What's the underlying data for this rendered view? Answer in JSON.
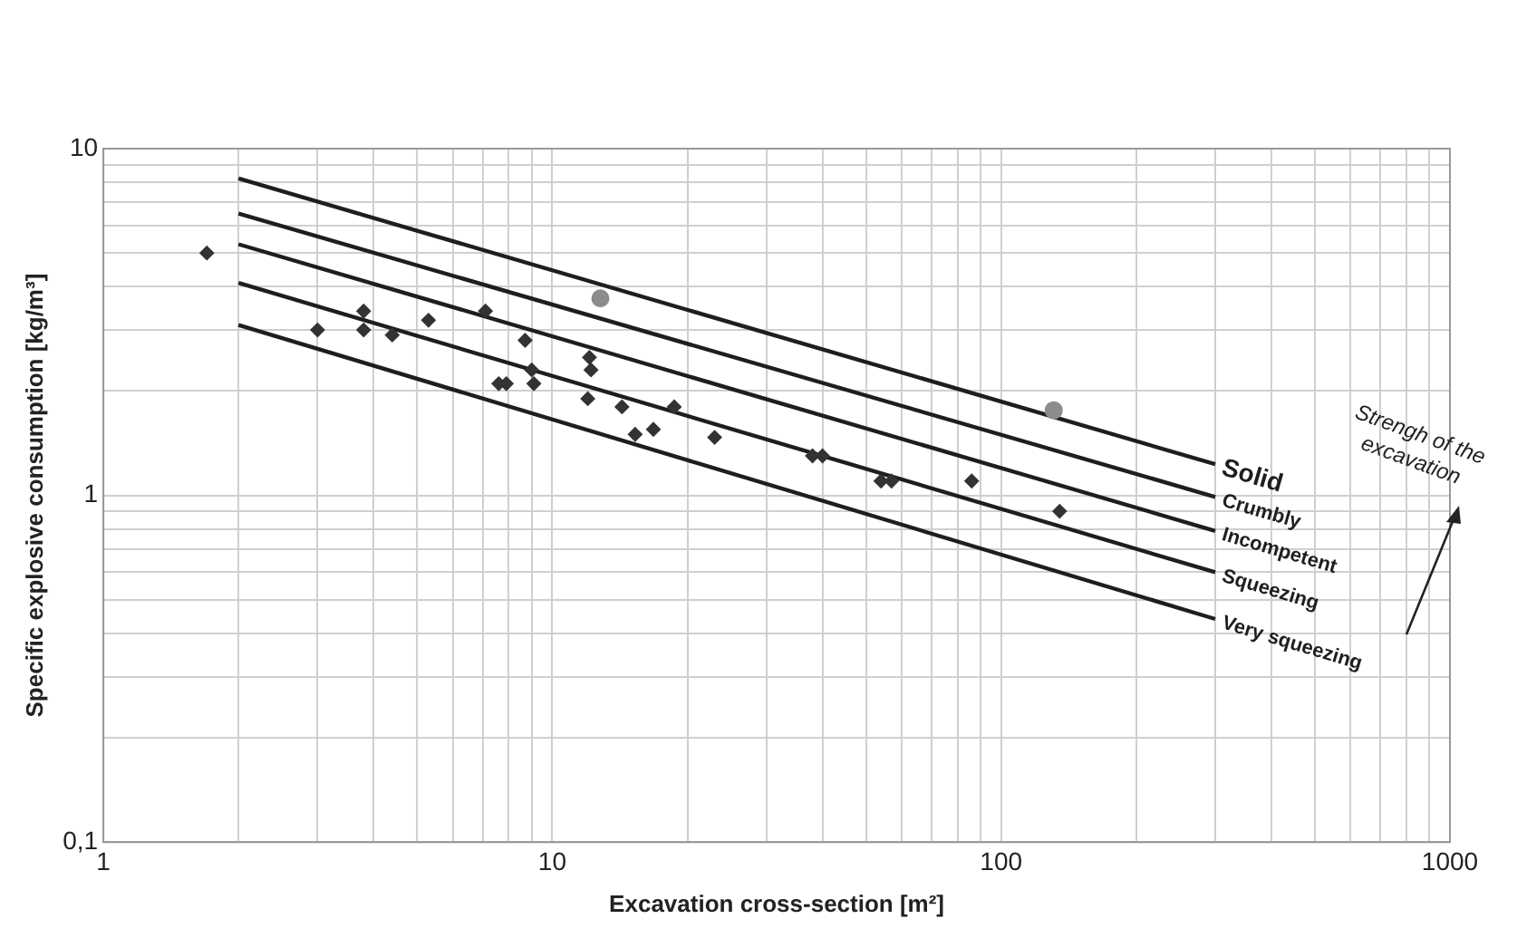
{
  "chart_data": {
    "type": "scatter",
    "xlabel": "Excavation cross-section [m²]",
    "ylabel": "Specific explosive consumption [kg/m³]",
    "log": "xy",
    "grid": true,
    "legend": false,
    "xlim": [
      1,
      1000
    ],
    "ylim": [
      0.1,
      10
    ],
    "xticks": [
      1,
      {
        "value": 2,
        "label": null
      },
      {
        "value": 3,
        "label": null
      },
      {
        "value": 4,
        "label": null
      },
      {
        "value": 5,
        "label": null
      },
      {
        "value": 6,
        "label": null
      },
      {
        "value": 7,
        "label": null
      },
      {
        "value": 8,
        "label": null
      },
      {
        "value": 9,
        "label": null
      },
      10,
      {
        "value": 20,
        "label": null
      },
      {
        "value": 30,
        "label": null
      },
      {
        "value": 40,
        "label": null
      },
      {
        "value": 50,
        "label": null
      },
      {
        "value": 60,
        "label": null
      },
      {
        "value": 70,
        "label": null
      },
      {
        "value": 80,
        "label": null
      },
      {
        "value": 90,
        "label": null
      },
      100,
      {
        "value": 200,
        "label": null
      },
      {
        "value": 300,
        "label": null
      },
      {
        "value": 400,
        "label": null
      },
      {
        "value": 500,
        "label": null
      },
      {
        "value": 600,
        "label": null
      },
      {
        "value": 700,
        "label": null
      },
      {
        "value": 800,
        "label": null
      },
      {
        "value": 900,
        "label": null
      },
      1000
    ],
    "yticks": [
      {
        "value": 0.1,
        "label": "0,1"
      },
      {
        "value": 0.2,
        "label": null
      },
      {
        "value": 0.3,
        "label": null
      },
      {
        "value": 0.4,
        "label": null
      },
      {
        "value": 0.5,
        "label": null
      },
      {
        "value": 0.6,
        "label": null
      },
      {
        "value": 0.7,
        "label": null
      },
      {
        "value": 0.8,
        "label": null
      },
      {
        "value": 0.9,
        "label": null
      },
      1,
      {
        "value": 2,
        "label": null
      },
      {
        "value": 3,
        "label": null
      },
      {
        "value": 4,
        "label": null
      },
      {
        "value": 5,
        "label": null
      },
      {
        "value": 6,
        "label": null
      },
      {
        "value": 7,
        "label": null
      },
      {
        "value": 8,
        "label": null
      },
      {
        "value": 9,
        "label": null
      },
      10
    ],
    "annotations": [
      "Strengh of the excavation"
    ],
    "series": [
      {
        "marker": "diamond",
        "color": "#333333",
        "x": [
          1.7,
          3,
          3.8,
          3.8,
          4.4,
          5.3,
          7.1,
          7.6,
          7.9,
          8.7,
          9,
          9.1,
          12,
          12.1,
          12.2,
          14.3,
          15.3,
          16.8,
          18.7,
          23,
          38,
          40,
          54,
          57,
          86,
          135
        ],
        "values": [
          5,
          3,
          3.4,
          3,
          2.9,
          3.2,
          3.4,
          2.1,
          2.1,
          2.8,
          2.3,
          2.1,
          1.9,
          2.5,
          2.3,
          1.8,
          1.5,
          1.55,
          1.8,
          1.47,
          1.3,
          1.3,
          1.1,
          1.1,
          1.1,
          0.9
        ]
      },
      {
        "marker": "circle",
        "color": "#8c8c8c",
        "x": [
          12.8,
          131
        ],
        "values": [
          3.7,
          1.76
        ]
      },
      {
        "type": "line",
        "name": "Solid",
        "marker": "none",
        "color": "#1e1e1e",
        "x": [
          2,
          300
        ],
        "values": [
          8.2,
          1.23
        ]
      },
      {
        "type": "line",
        "name": "Crumbly",
        "marker": "none",
        "color": "#1e1e1e",
        "x": [
          2,
          300
        ],
        "values": [
          6.5,
          0.99
        ]
      },
      {
        "type": "line",
        "name": "Incompetent",
        "marker": "none",
        "color": "#1e1e1e",
        "x": [
          2,
          300
        ],
        "values": [
          5.3,
          0.79
        ]
      },
      {
        "type": "line",
        "name": "Squeezing",
        "marker": "none",
        "color": "#1e1e1e",
        "x": [
          2,
          300
        ],
        "values": [
          4.1,
          0.6
        ]
      },
      {
        "type": "line",
        "name": "Very squeezing",
        "marker": "none",
        "color": "#1e1e1e",
        "x": [
          2,
          300
        ],
        "values": [
          3.1,
          0.44
        ]
      }
    ]
  }
}
